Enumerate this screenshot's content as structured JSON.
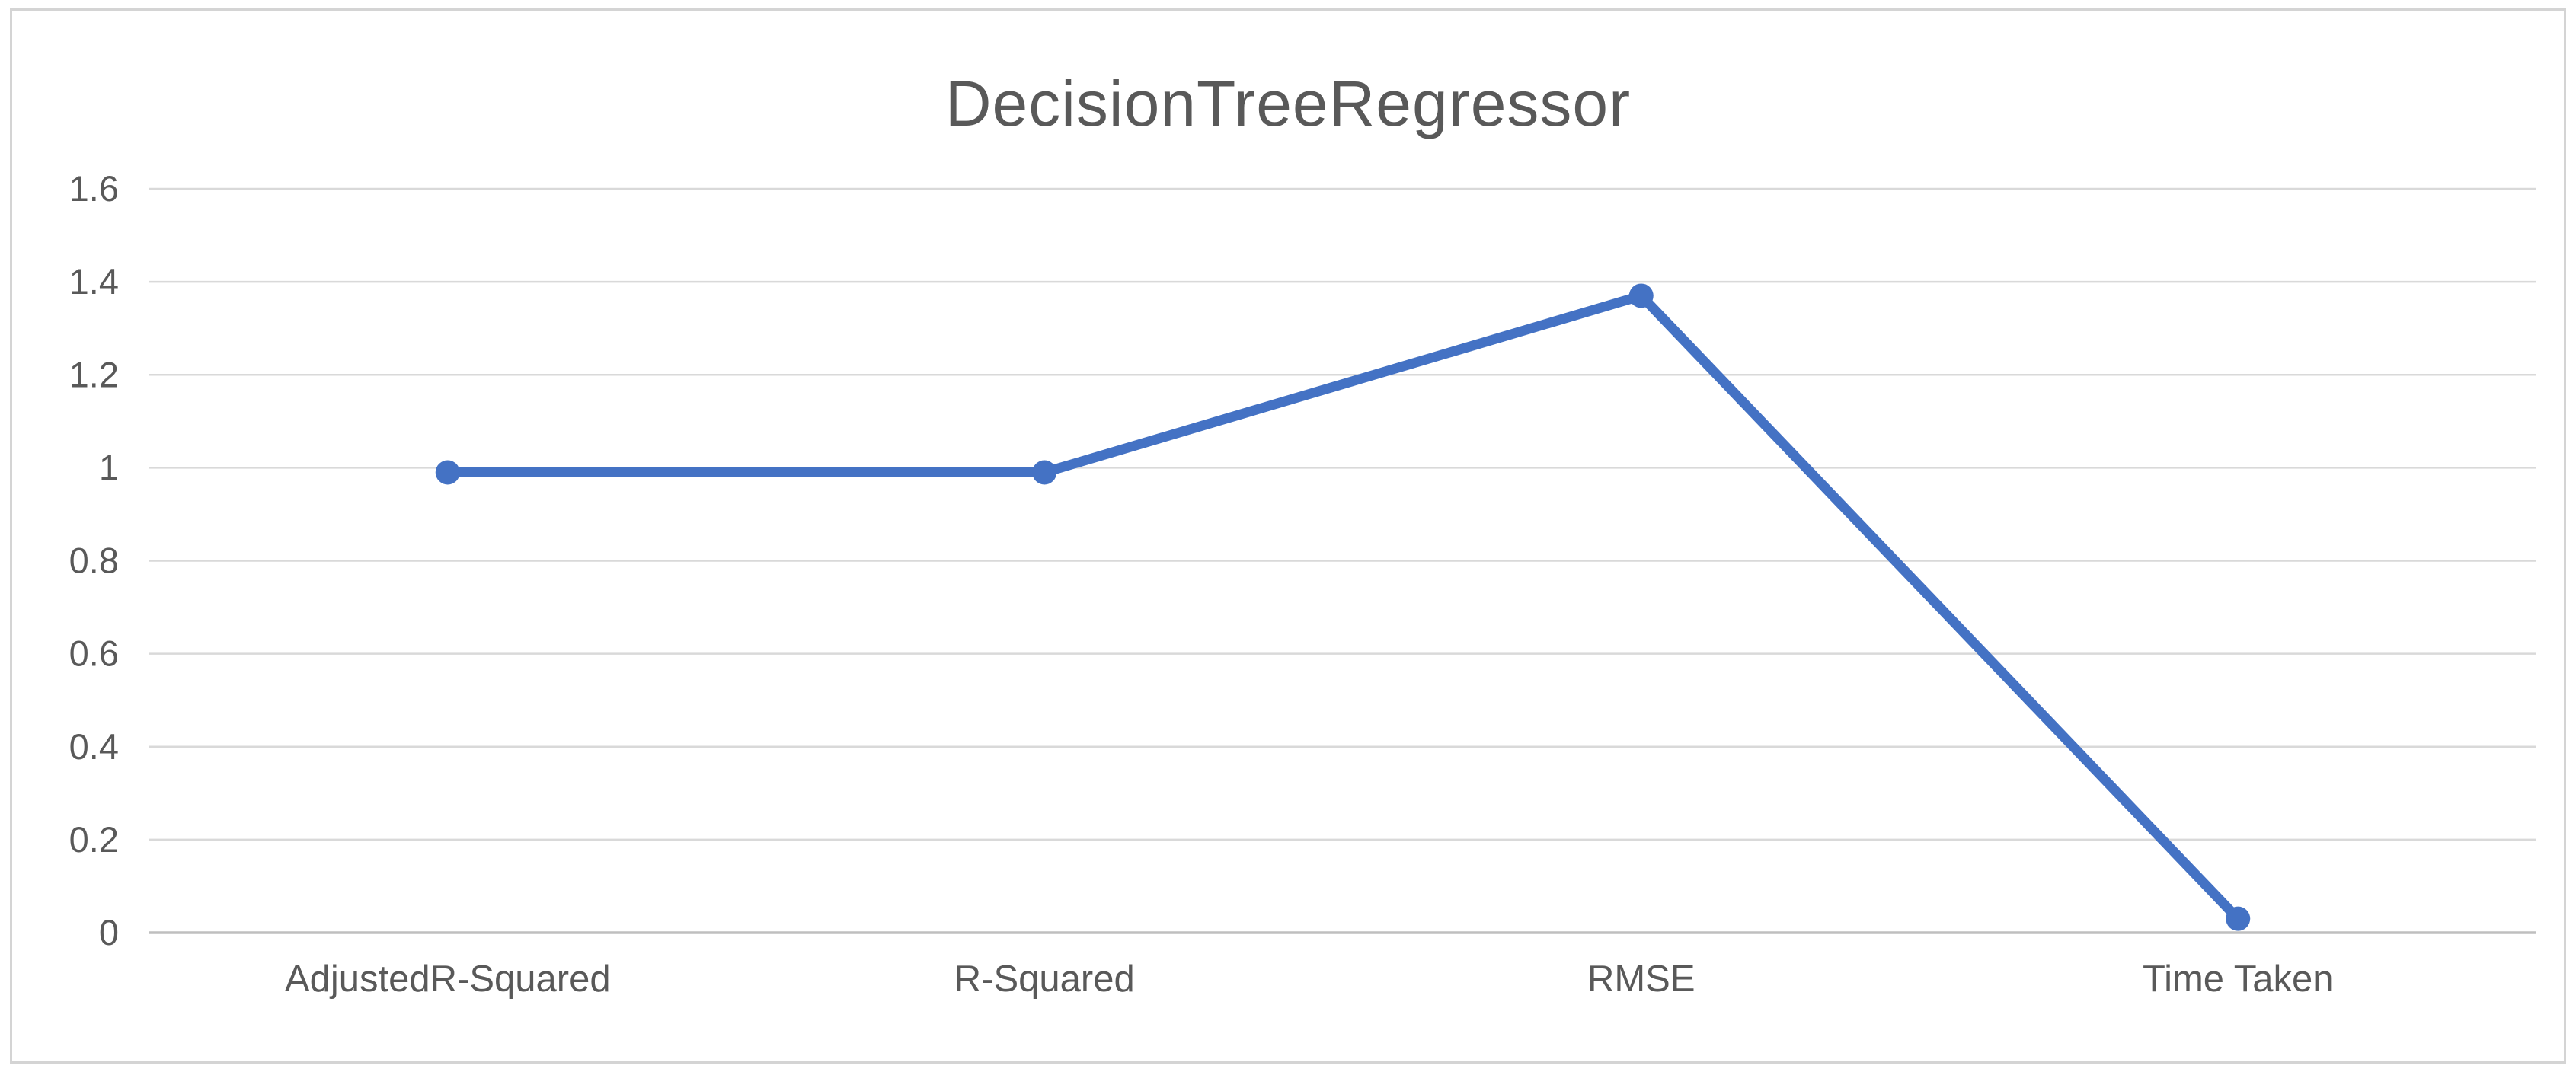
{
  "chart_data": {
    "type": "line",
    "title": "DecisionTreeRegressor",
    "xlabel": "",
    "ylabel": "",
    "categories": [
      "AdjustedR-Squared",
      "R-Squared",
      "RMSE",
      "Time Taken"
    ],
    "series": [
      {
        "name": "DecisionTreeRegressor",
        "values": [
          0.99,
          0.99,
          1.37,
          0.03
        ]
      }
    ],
    "ylim": [
      0,
      1.6
    ],
    "yticks": [
      0,
      0.2,
      0.4,
      0.6,
      0.8,
      1,
      1.2,
      1.4,
      1.6
    ],
    "ytick_labels": [
      "0",
      "0.2",
      "0.4",
      "0.6",
      "0.8",
      "1",
      "1.2",
      "1.4",
      "1.6"
    ],
    "grid": true,
    "legend_position": "none",
    "marker": "circle",
    "colors": {
      "line": "#4472C4",
      "gridline": "#d9d9d9",
      "axis": "#bfbfbf",
      "text": "#595959",
      "border": "#d4d4d4"
    }
  }
}
